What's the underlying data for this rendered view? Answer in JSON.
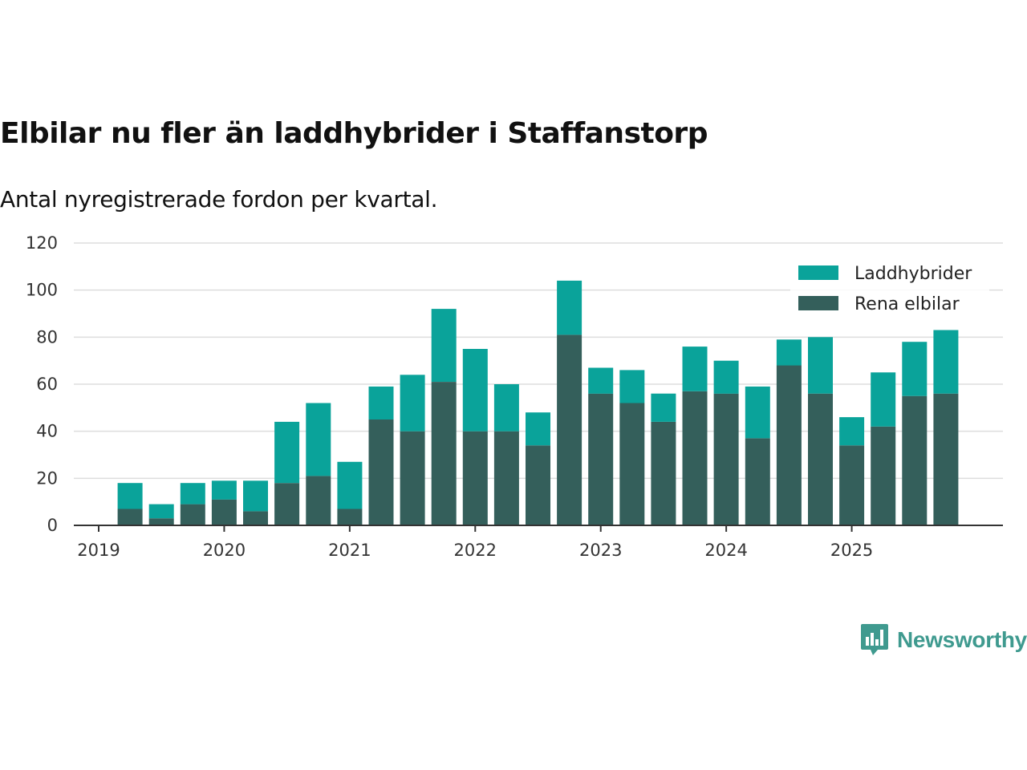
{
  "title": "Elbilar nu fler än laddhybrider i Staffanstorp",
  "subtitle": "Antal nyregistrerade fordon per kvartal.",
  "brand": {
    "name": "Newsworthy",
    "color": "#3f9a8f",
    "icon": "newsworthy-logo-icon"
  },
  "colors": {
    "laddhybrider": "#0aa39a",
    "rena_elbilar": "#345f5b"
  },
  "chart_data": {
    "type": "bar",
    "stacked": true,
    "title": "Elbilar nu fler än laddhybrider i Staffanstorp",
    "subtitle": "Antal nyregistrerade fordon per kvartal.",
    "xlabel": "",
    "ylabel": "",
    "ylim": [
      0,
      120
    ],
    "yticks": [
      0,
      20,
      40,
      60,
      80,
      100,
      120
    ],
    "grid": true,
    "legend_position": "top-right",
    "x_range": [
      2019.0,
      2026.0
    ],
    "xticks": [
      {
        "value": 2019,
        "label": "2019"
      },
      {
        "value": 2020,
        "label": "2020"
      },
      {
        "value": 2021,
        "label": "2021"
      },
      {
        "value": 2022,
        "label": "2022"
      },
      {
        "value": 2023,
        "label": "2023"
      },
      {
        "value": 2024,
        "label": "2024"
      },
      {
        "value": 2025,
        "label": "2025"
      }
    ],
    "categories": [
      "2019 Q2",
      "2019 Q3",
      "2019 Q4",
      "2020 Q1",
      "2020 Q2",
      "2020 Q3",
      "2020 Q4",
      "2021 Q1",
      "2021 Q2",
      "2021 Q3",
      "2021 Q4",
      "2022 Q1",
      "2022 Q2",
      "2022 Q3",
      "2022 Q4",
      "2023 Q1",
      "2023 Q2",
      "2023 Q3",
      "2023 Q4",
      "2024 Q1",
      "2024 Q2",
      "2024 Q3",
      "2024 Q4",
      "2025 Q1",
      "2025 Q2",
      "2025 Q3",
      "2025 Q4"
    ],
    "x": [
      2019.25,
      2019.5,
      2019.75,
      2020.0,
      2020.25,
      2020.5,
      2020.75,
      2021.0,
      2021.25,
      2021.5,
      2021.75,
      2022.0,
      2022.25,
      2022.5,
      2022.75,
      2023.0,
      2023.25,
      2023.5,
      2023.75,
      2024.0,
      2024.25,
      2024.5,
      2024.75,
      2025.0,
      2025.25,
      2025.5,
      2025.75
    ],
    "series": [
      {
        "name": "Rena elbilar",
        "key": "rena_elbilar",
        "values": [
          7,
          3,
          9,
          11,
          6,
          18,
          21,
          7,
          45,
          40,
          61,
          40,
          40,
          34,
          81,
          56,
          52,
          44,
          57,
          56,
          37,
          68,
          56,
          34,
          42,
          55,
          56
        ]
      },
      {
        "name": "Laddhybrider",
        "key": "laddhybrider",
        "values": [
          11,
          6,
          9,
          8,
          13,
          26,
          31,
          20,
          14,
          24,
          31,
          35,
          20,
          14,
          23,
          11,
          14,
          12,
          19,
          14,
          22,
          11,
          24,
          12,
          23,
          23,
          27
        ]
      }
    ],
    "legend": [
      "Laddhybrider",
      "Rena elbilar"
    ]
  }
}
